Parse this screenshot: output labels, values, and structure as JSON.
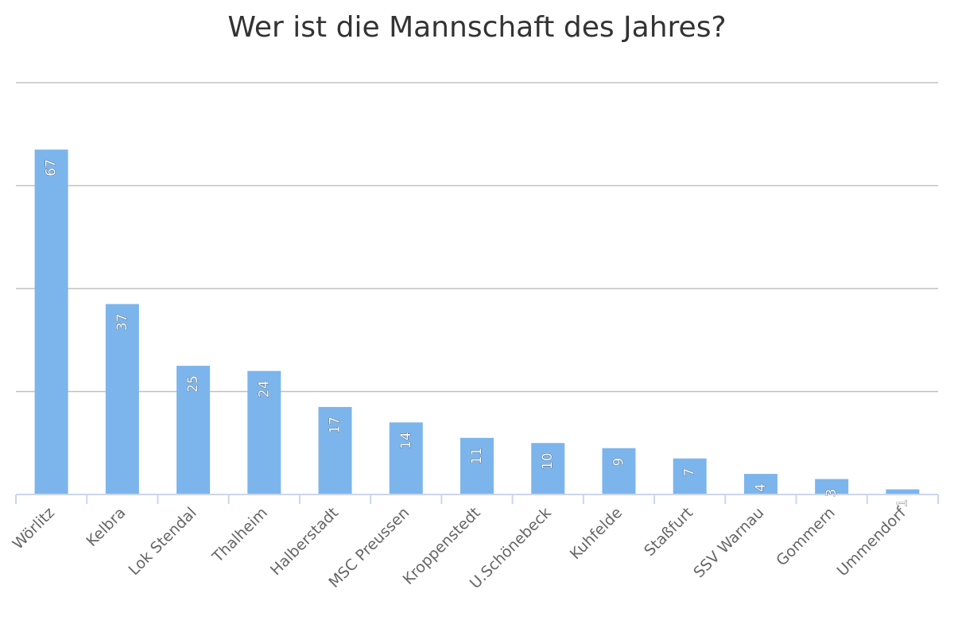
{
  "chart_data": {
    "type": "bar",
    "title": "Wer ist die Mannschaft des Jahres?",
    "categories": [
      "Wörlitz",
      "Kelbra",
      "Lok Stendal",
      "Thalheim",
      "Halberstadt",
      "MSC Preussen",
      "Kroppenstedt",
      "U.Schönebeck",
      "Kuhfelde",
      "Staßfurt",
      "SSV Warnau",
      "Gommern",
      "Ummendorf"
    ],
    "values": [
      67,
      37,
      25,
      24,
      17,
      14,
      11,
      10,
      9,
      7,
      4,
      3,
      1
    ],
    "ylim": [
      0,
      80
    ],
    "grid": true,
    "legend": "none",
    "colors": {
      "bar": "#7cb5ec",
      "grid": "#c0c0c0",
      "axis": "#ccd6eb",
      "title": "#333333",
      "label": "#666666"
    }
  }
}
